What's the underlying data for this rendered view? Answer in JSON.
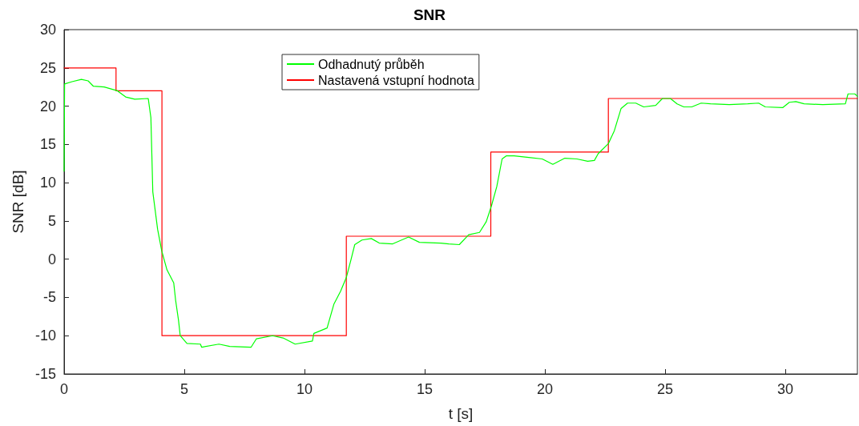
{
  "chart_data": {
    "type": "line",
    "title": "SNR",
    "xlabel": "t [s]",
    "ylabel": "SNR [dB]",
    "xlim": [
      0,
      33
    ],
    "xticks": [
      0,
      5,
      10,
      15,
      20,
      25,
      30
    ],
    "ylim": [
      -15,
      30
    ],
    "yticks": [
      -15,
      -10,
      -5,
      0,
      5,
      10,
      15,
      20,
      25,
      30
    ],
    "grid": false,
    "legend": "top",
    "marker": "none",
    "line_style": "solid",
    "series": [
      {
        "name": "Odhadnutý průběh",
        "color": "#00ff00",
        "x": [
          0,
          0.02,
          0.33,
          0.72,
          1.0,
          1.22,
          1.67,
          2.22,
          2.56,
          2.94,
          3.5,
          3.61,
          3.69,
          3.89,
          4.06,
          4.28,
          4.56,
          4.64,
          4.76,
          4.83,
          5.11,
          5.67,
          5.72,
          6.44,
          6.89,
          7.78,
          8.0,
          8.67,
          9.11,
          9.61,
          10.33,
          10.39,
          10.94,
          11.22,
          11.5,
          11.74,
          11.94,
          12.09,
          12.39,
          12.78,
          13.11,
          13.67,
          14.33,
          14.78,
          15.67,
          16.0,
          16.44,
          16.83,
          17.28,
          17.56,
          17.78,
          18.0,
          18.22,
          18.39,
          18.72,
          19.33,
          19.89,
          20.33,
          20.83,
          21.33,
          21.78,
          22.06,
          22.22,
          22.64,
          22.89,
          23.17,
          23.44,
          23.78,
          24.11,
          24.61,
          24.89,
          25.22,
          25.5,
          25.78,
          26.11,
          26.5,
          26.89,
          27.67,
          28.44,
          28.89,
          29.17,
          29.89,
          30.17,
          30.44,
          30.78,
          31.56,
          32.5,
          32.61,
          32.89,
          33.0
        ],
        "values": [
          11.5,
          22.9,
          23.2,
          23.5,
          23.3,
          22.6,
          22.5,
          22.0,
          21.2,
          20.9,
          21.0,
          18.5,
          8.8,
          3.9,
          1.1,
          -1.4,
          -3.1,
          -5.4,
          -8.0,
          -10.0,
          -11.0,
          -11.1,
          -11.5,
          -11.1,
          -11.4,
          -11.5,
          -10.4,
          -10.0,
          -10.3,
          -11.1,
          -10.7,
          -9.7,
          -9.0,
          -5.9,
          -4.2,
          -2.4,
          0.0,
          1.9,
          2.5,
          2.7,
          2.1,
          2.0,
          2.9,
          2.2,
          2.1,
          2.0,
          1.9,
          3.2,
          3.5,
          4.9,
          7.0,
          9.5,
          13.1,
          13.5,
          13.5,
          13.3,
          13.1,
          12.4,
          13.2,
          13.1,
          12.8,
          12.9,
          13.8,
          15.1,
          16.8,
          19.7,
          20.4,
          20.4,
          19.9,
          20.1,
          21.0,
          21.0,
          20.3,
          19.9,
          19.9,
          20.4,
          20.3,
          20.2,
          20.3,
          20.4,
          19.9,
          19.8,
          20.5,
          20.6,
          20.3,
          20.2,
          20.3,
          21.6,
          21.6,
          21.3
        ]
      },
      {
        "name": "Nastavená vstupní hodnota",
        "color": "#ff0000",
        "type": "step",
        "x": [
          0,
          2.16,
          4.07,
          11.74,
          17.75,
          22.64,
          33
        ],
        "values": [
          25,
          22,
          -10,
          3,
          14,
          21,
          21
        ]
      }
    ]
  }
}
